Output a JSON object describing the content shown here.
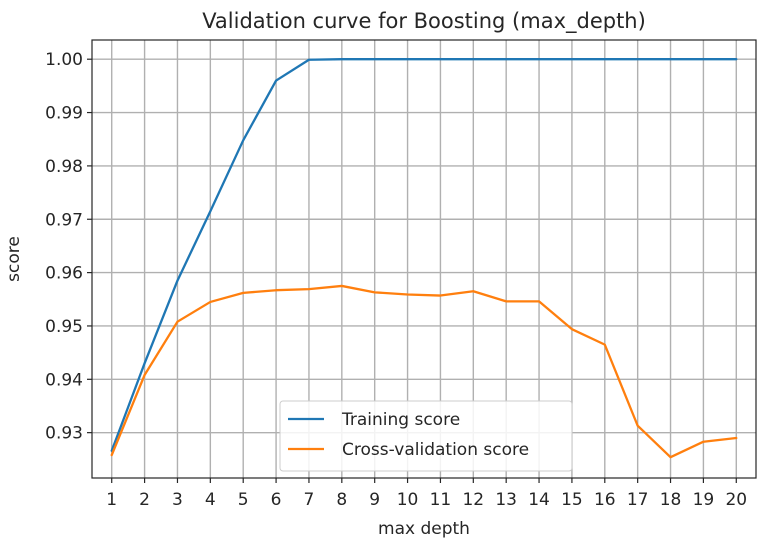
{
  "chart_data": {
    "type": "line",
    "title": "Validation curve for Boosting (max_depth)",
    "xlabel": "max depth",
    "ylabel": "score",
    "x": [
      1,
      2,
      3,
      4,
      5,
      6,
      7,
      8,
      9,
      10,
      11,
      12,
      13,
      14,
      15,
      16,
      17,
      18,
      19,
      20
    ],
    "xticks": [
      "1",
      "2",
      "3",
      "4",
      "5",
      "6",
      "7",
      "8",
      "9",
      "10",
      "11",
      "12",
      "13",
      "14",
      "15",
      "16",
      "17",
      "18",
      "19",
      "20"
    ],
    "yticks": [
      "0.93",
      "0.94",
      "0.95",
      "0.96",
      "0.97",
      "0.98",
      "0.99",
      "1.00"
    ],
    "ytick_values": [
      0.93,
      0.94,
      0.95,
      0.96,
      0.97,
      0.98,
      0.99,
      1.0
    ],
    "xlim": [
      0.4,
      20.6
    ],
    "ylim": [
      0.9215,
      1.0036
    ],
    "grid": true,
    "legend_position": "lower center",
    "series": [
      {
        "name": "Training score",
        "color": "#1f77b4",
        "values": [
          0.9266,
          0.943,
          0.9585,
          0.9715,
          0.9848,
          0.996,
          0.9999,
          1.0,
          1.0,
          1.0,
          1.0,
          1.0,
          1.0,
          1.0,
          1.0,
          1.0,
          1.0,
          1.0,
          1.0,
          1.0
        ]
      },
      {
        "name": "Cross-validation score",
        "color": "#ff7f0e",
        "values": [
          0.9258,
          0.9408,
          0.9508,
          0.9545,
          0.9562,
          0.9567,
          0.9569,
          0.9575,
          0.9563,
          0.9559,
          0.9557,
          0.9565,
          0.9546,
          0.9546,
          0.9494,
          0.9465,
          0.9313,
          0.9254,
          0.9283,
          0.929
        ]
      }
    ]
  }
}
